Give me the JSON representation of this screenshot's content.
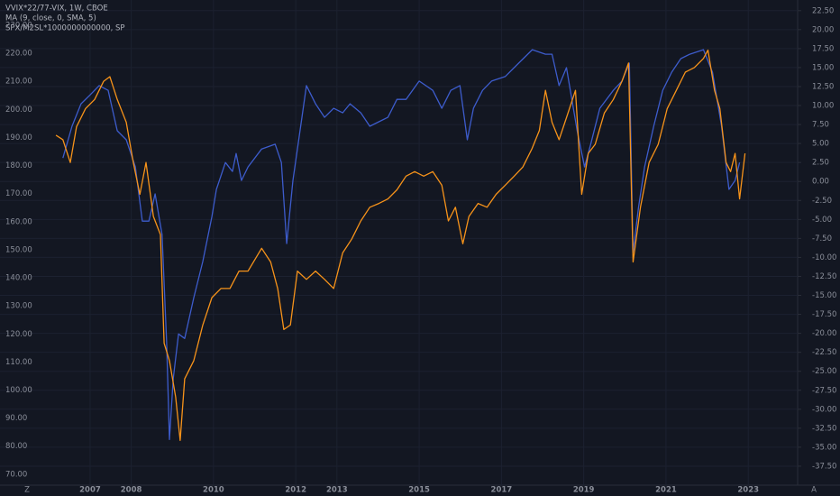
{
  "chart_data": {
    "type": "line",
    "legend_lines": [
      "VVIX*22/77-VIX, 1W, CBOE",
      "MA (9, close, 0, SMA, 5)",
      "SPX/M2SL*1000000000000, SP"
    ],
    "corner_labels": [
      "Z",
      "A"
    ],
    "xlim": [
      2004.81,
      2024.2
    ],
    "xticks": [
      2007,
      2008,
      2010,
      2012,
      2013,
      2015,
      2017,
      2019,
      2021,
      2023
    ],
    "ylim": [
      66.1,
      239.0
    ],
    "yticks": [
      {
        "value": 230,
        "label": "230.00"
      },
      {
        "value": 220,
        "label": "220.00"
      },
      {
        "value": 210,
        "label": "210.00"
      },
      {
        "value": 200,
        "label": "200.00"
      },
      {
        "value": 190,
        "label": "190.00"
      },
      {
        "value": 180,
        "label": "180.00"
      },
      {
        "value": 170,
        "label": "170.00"
      },
      {
        "value": 160,
        "label": "160.00"
      },
      {
        "value": 150,
        "label": "150.00"
      },
      {
        "value": 140,
        "label": "140.00"
      },
      {
        "value": 130,
        "label": "130.00"
      },
      {
        "value": 120,
        "label": "120.00"
      },
      {
        "value": 110,
        "label": "110.00"
      },
      {
        "value": 100,
        "label": "100.00"
      },
      {
        "value": 90,
        "label": "90.00"
      },
      {
        "value": 80,
        "label": "80.00"
      },
      {
        "value": 70,
        "label": "70.00"
      }
    ],
    "y2lim": [
      -40.0,
      23.9
    ],
    "y2ticks": [
      {
        "value": 22.5,
        "label": "22.50"
      },
      {
        "value": 20,
        "label": "20.00"
      },
      {
        "value": 17.5,
        "label": "17.50"
      },
      {
        "value": 15,
        "label": "15.00"
      },
      {
        "value": 12.5,
        "label": "12.50"
      },
      {
        "value": 10,
        "label": "10.00"
      },
      {
        "value": 7.5,
        "label": "7.50"
      },
      {
        "value": 5,
        "label": "5.00"
      },
      {
        "value": 2.5,
        "label": "2.50"
      },
      {
        "value": 0,
        "label": "0.00"
      },
      {
        "value": -2.5,
        "label": "-2.50"
      },
      {
        "value": -5,
        "label": "-5.00"
      },
      {
        "value": -7.5,
        "label": "-7.50"
      },
      {
        "value": -10,
        "label": "-10.00"
      },
      {
        "value": -12.5,
        "label": "-12.50"
      },
      {
        "value": -15,
        "label": "-15.00"
      },
      {
        "value": -17.5,
        "label": "-17.50"
      },
      {
        "value": -20,
        "label": "-20.00"
      },
      {
        "value": -22.5,
        "label": "-22.50"
      },
      {
        "value": -25,
        "label": "-25.00"
      },
      {
        "value": -27.5,
        "label": "-27.50"
      },
      {
        "value": -30,
        "label": "-30.00"
      },
      {
        "value": -32.5,
        "label": "-32.50"
      },
      {
        "value": -35,
        "label": "-35.00"
      },
      {
        "value": -37.5,
        "label": "-37.50"
      }
    ],
    "grid": true,
    "series": [
      {
        "name": "SPX/M2SL*1000000000000, SP",
        "color": "#3d5ccc",
        "axis": "y",
        "x": [
          2006.34,
          2006.56,
          2006.78,
          2007.0,
          2007.22,
          2007.44,
          2007.66,
          2007.88,
          2008.1,
          2008.27,
          2008.43,
          2008.58,
          2008.75,
          2008.86,
          2008.93,
          2009.02,
          2009.15,
          2009.3,
          2009.52,
          2009.74,
          2009.96,
          2010.07,
          2010.29,
          2010.46,
          2010.55,
          2010.68,
          2010.84,
          2011.17,
          2011.5,
          2011.65,
          2011.78,
          2011.93,
          2012.15,
          2012.26,
          2012.48,
          2012.7,
          2012.92,
          2013.14,
          2013.32,
          2013.58,
          2013.8,
          2014.02,
          2014.24,
          2014.46,
          2014.68,
          2015.0,
          2015.33,
          2015.55,
          2015.77,
          2015.99,
          2016.17,
          2016.32,
          2016.54,
          2016.76,
          2017.09,
          2017.42,
          2017.75,
          2018.07,
          2018.23,
          2018.4,
          2018.58,
          2018.84,
          2019.02,
          2019.17,
          2019.39,
          2019.72,
          2019.93,
          2020.11,
          2020.2,
          2020.33,
          2020.48,
          2020.7,
          2020.92,
          2021.14,
          2021.36,
          2021.58,
          2021.91,
          2022.13,
          2022.35,
          2022.53,
          2022.68,
          2022.79
        ],
        "values": [
          182.7,
          194.0,
          202.0,
          205.2,
          208.5,
          206.8,
          192.4,
          189.2,
          179.5,
          160.2,
          160.2,
          169.9,
          155.4,
          116.8,
          82.4,
          104.0,
          120.0,
          118.4,
          132.9,
          145.8,
          161.8,
          171.5,
          181.1,
          177.9,
          184.3,
          174.7,
          179.5,
          185.9,
          187.6,
          181.1,
          152.2,
          174.7,
          197.2,
          208.5,
          202.0,
          197.2,
          200.4,
          198.8,
          202.0,
          198.8,
          194.0,
          195.6,
          197.2,
          203.6,
          203.6,
          210.1,
          206.8,
          200.4,
          206.8,
          208.5,
          189.2,
          200.4,
          206.8,
          210.1,
          211.7,
          216.5,
          221.3,
          219.7,
          219.7,
          208.5,
          214.9,
          192.4,
          179.5,
          187.6,
          200.4,
          206.8,
          210.1,
          216.5,
          149.0,
          165.0,
          179.5,
          194.0,
          206.8,
          213.3,
          218.1,
          219.7,
          221.3,
          213.3,
          194.0,
          171.5,
          174.7,
          181.1
        ]
      },
      {
        "name": "VVIX*22/77-VIX, 1W, CBOE",
        "color": "#f7931a",
        "axis": "y2",
        "x": [
          2006.17,
          2006.34,
          2006.52,
          2006.67,
          2006.89,
          2007.11,
          2007.33,
          2007.48,
          2007.66,
          2007.88,
          2008.05,
          2008.21,
          2008.36,
          2008.54,
          2008.71,
          2008.8,
          2008.93,
          2009.08,
          2009.19,
          2009.3,
          2009.52,
          2009.74,
          2009.96,
          2010.18,
          2010.4,
          2010.62,
          2010.84,
          2011.17,
          2011.39,
          2011.56,
          2011.71,
          2011.87,
          2012.04,
          2012.26,
          2012.48,
          2012.7,
          2012.92,
          2013.14,
          2013.36,
          2013.58,
          2013.8,
          2014.02,
          2014.24,
          2014.46,
          2014.68,
          2014.89,
          2015.11,
          2015.33,
          2015.55,
          2015.71,
          2015.88,
          2016.06,
          2016.21,
          2016.43,
          2016.65,
          2016.87,
          2017.09,
          2017.31,
          2017.52,
          2017.74,
          2017.92,
          2018.07,
          2018.23,
          2018.4,
          2018.58,
          2018.8,
          2018.95,
          2019.11,
          2019.28,
          2019.5,
          2019.72,
          2019.93,
          2020.09,
          2020.2,
          2020.38,
          2020.59,
          2020.81,
          2021.03,
          2021.25,
          2021.47,
          2021.69,
          2021.91,
          2022.02,
          2022.18,
          2022.31,
          2022.46,
          2022.57,
          2022.68,
          2022.79,
          2022.92
        ],
        "values": [
          6.1,
          5.5,
          2.5,
          7.2,
          9.6,
          10.8,
          13.2,
          13.8,
          10.8,
          7.8,
          2.5,
          -1.7,
          2.5,
          -4.6,
          -7.0,
          -21.3,
          -23.6,
          -28.4,
          -34.1,
          -26.0,
          -23.6,
          -18.9,
          -15.3,
          -14.1,
          -14.1,
          -11.8,
          -11.8,
          -8.8,
          -10.6,
          -14.1,
          -19.5,
          -18.9,
          -11.8,
          -12.9,
          -11.8,
          -12.9,
          -14.1,
          -9.4,
          -7.6,
          -5.2,
          -3.4,
          -2.9,
          -2.3,
          -1.1,
          0.7,
          1.3,
          0.7,
          1.3,
          -0.5,
          -5.2,
          -3.4,
          -8.2,
          -4.6,
          -2.9,
          -3.4,
          -1.7,
          -0.5,
          0.7,
          1.9,
          4.3,
          6.7,
          12.0,
          7.8,
          5.5,
          8.4,
          12.0,
          -1.7,
          3.7,
          4.9,
          9.0,
          10.8,
          13.2,
          15.6,
          -10.6,
          -3.4,
          2.5,
          4.9,
          9.6,
          12.0,
          14.4,
          15.0,
          16.2,
          17.3,
          12.0,
          9.6,
          2.5,
          1.3,
          3.7,
          -2.3,
          3.7
        ]
      }
    ]
  }
}
